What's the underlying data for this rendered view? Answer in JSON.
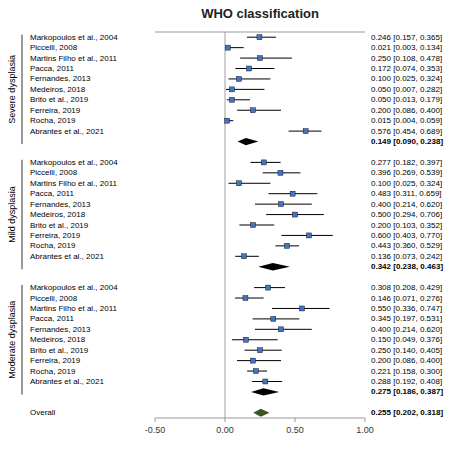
{
  "chart_data": {
    "type": "forest",
    "title": "WHO classification",
    "xlim": [
      -0.5,
      1.0
    ],
    "xticks": [
      {
        "value": -0.5,
        "label": "-0.50"
      },
      {
        "value": 0.0,
        "label": "0.00"
      },
      {
        "value": 0.5,
        "label": "0.50"
      },
      {
        "value": 1.0,
        "label": "1.00"
      }
    ],
    "groups": [
      {
        "name": "Severe dysplasia",
        "color": "#4472C4",
        "categories": [
          "Markopoulos et al., 2004",
          "Piccelli, 2008",
          "Martins Filho et al., 2011",
          "Pacca, 2011",
          "Fernandes, 2013",
          "Medeiros, 2018",
          "Brito et al., 2019",
          "Ferreira, 2019",
          "Rocha, 2019",
          "Abrantes et al., 2021"
        ],
        "values": [
          0.246,
          0.021,
          0.25,
          0.172,
          0.1,
          0.05,
          0.05,
          0.2,
          0.015,
          0.576
        ],
        "lo": [
          0.157,
          0.003,
          0.108,
          0.074,
          0.025,
          0.007,
          0.013,
          0.086,
          0.004,
          0.454
        ],
        "hi": [
          0.365,
          0.134,
          0.478,
          0.353,
          0.324,
          0.282,
          0.179,
          0.4,
          0.059,
          0.689
        ],
        "value_labels": [
          "0.246 [0.157, 0.365]",
          "0.021 [0.003, 0.134]",
          "0.250 [0.108, 0.478]",
          "0.172 [0.074, 0.353]",
          "0.100 [0.025, 0.324]",
          "0.050 [0.007, 0.282]",
          "0.050 [0.013, 0.179]",
          "0.200 [0.086, 0.400]",
          "0.015 [0.004, 0.059]",
          "0.576 [0.454, 0.689]"
        ],
        "summary": {
          "value": 0.149,
          "lo": 0.09,
          "hi": 0.238,
          "value_label": "0.149 [0.090, 0.238]",
          "color": "#000000"
        }
      },
      {
        "name": "Mild dysplasia",
        "color": "#4472C4",
        "categories": [
          "Markopoulos et al., 2004",
          "Piccelli, 2008",
          "Martins Filho et al., 2011",
          "Pacca, 2011",
          "Fernandes, 2013",
          "Medeiros, 2018",
          "Brito et al., 2019",
          "Ferreira, 2019",
          "Rocha, 2019",
          "Abrantes et al., 2021"
        ],
        "values": [
          0.277,
          0.396,
          0.1,
          0.483,
          0.4,
          0.5,
          0.2,
          0.6,
          0.443,
          0.136
        ],
        "lo": [
          0.182,
          0.269,
          0.025,
          0.311,
          0.214,
          0.294,
          0.103,
          0.403,
          0.36,
          0.073
        ],
        "hi": [
          0.397,
          0.539,
          0.324,
          0.659,
          0.62,
          0.706,
          0.352,
          0.77,
          0.529,
          0.242
        ],
        "value_labels": [
          "0.277 [0.182, 0.397]",
          "0.396 [0.269, 0.539]",
          "0.100 [0.025, 0.324]",
          "0.483 [0.311, 0.659]",
          "0.400 [0.214, 0.620]",
          "0.500 [0.294, 0.706]",
          "0.200 [0.103, 0.352]",
          "0.600 [0.403, 0.770]",
          "0.443 [0.360, 0.529]",
          "0.136 [0.073, 0.242]"
        ],
        "summary": {
          "value": 0.342,
          "lo": 0.238,
          "hi": 0.463,
          "value_label": "0.342 [0.238, 0.463]",
          "color": "#000000"
        }
      },
      {
        "name": "Moderate dysplasia",
        "color": "#4472C4",
        "categories": [
          "Markopoulos et al., 2004",
          "Piccelli, 2008",
          "Martins Filho et al., 2011",
          "Pacca, 2011",
          "Fernandes, 2013",
          "Medeiros, 2018",
          "Brito et al., 2019",
          "Ferreira, 2019",
          "Rocha, 2019",
          "Abrantes et al., 2021"
        ],
        "values": [
          0.308,
          0.146,
          0.55,
          0.345,
          0.4,
          0.15,
          0.25,
          0.2,
          0.221,
          0.288
        ],
        "lo": [
          0.208,
          0.071,
          0.336,
          0.197,
          0.214,
          0.049,
          0.14,
          0.086,
          0.158,
          0.192
        ],
        "hi": [
          0.429,
          0.276,
          0.747,
          0.531,
          0.62,
          0.376,
          0.405,
          0.4,
          0.3,
          0.408
        ],
        "value_labels": [
          "0.308 [0.208, 0.429]",
          "0.146 [0.071, 0.276]",
          "0.550 [0.336, 0.747]",
          "0.345 [0.197, 0.531]",
          "0.400 [0.214, 0.620]",
          "0.150 [0.049, 0.376]",
          "0.250 [0.140, 0.405]",
          "0.200 [0.086, 0.400]",
          "0.221 [0.158, 0.300]",
          "0.288 [0.192, 0.408]"
        ],
        "summary": {
          "value": 0.275,
          "lo": 0.186,
          "hi": 0.387,
          "value_label": "0.275 [0.186, 0.387]",
          "color": "#000000"
        }
      }
    ],
    "overall": {
      "name": "Overall",
      "value": 0.255,
      "lo": 0.202,
      "hi": 0.318,
      "value_label": "0.255 [0.202, 0.318]",
      "color": "#375623"
    }
  }
}
